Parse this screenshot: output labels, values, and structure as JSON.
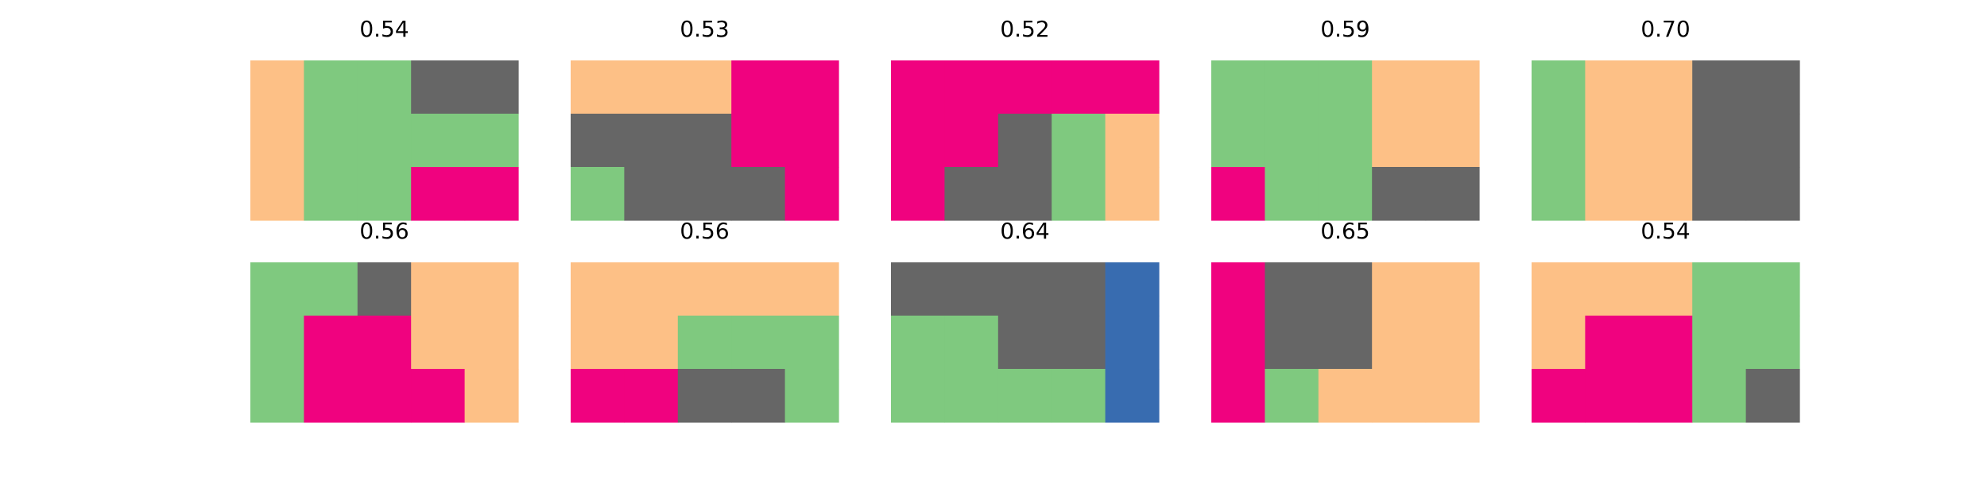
{
  "chart_data": {
    "type": "heatmap",
    "grid_rows": 3,
    "grid_cols": 5,
    "colors": {
      "O": "#fdc086",
      "G": "#7fc97f",
      "K": "#666666",
      "M": "#f0027f",
      "B": "#386cb0"
    },
    "panels": [
      {
        "title": "0.54",
        "cells": [
          [
            "O",
            "G",
            "G",
            "K",
            "K"
          ],
          [
            "O",
            "G",
            "G",
            "G",
            "G"
          ],
          [
            "O",
            "G",
            "G",
            "M",
            "M"
          ]
        ]
      },
      {
        "title": "0.53",
        "cells": [
          [
            "O",
            "O",
            "O",
            "M",
            "M"
          ],
          [
            "K",
            "K",
            "K",
            "M",
            "M"
          ],
          [
            "G",
            "K",
            "K",
            "K",
            "M"
          ]
        ]
      },
      {
        "title": "0.52",
        "cells": [
          [
            "M",
            "M",
            "M",
            "M",
            "M"
          ],
          [
            "M",
            "M",
            "K",
            "G",
            "O"
          ],
          [
            "M",
            "K",
            "K",
            "G",
            "O"
          ]
        ]
      },
      {
        "title": "0.59",
        "cells": [
          [
            "G",
            "G",
            "G",
            "O",
            "O"
          ],
          [
            "G",
            "G",
            "G",
            "O",
            "O"
          ],
          [
            "M",
            "G",
            "G",
            "K",
            "K"
          ]
        ]
      },
      {
        "title": "0.70",
        "cells": [
          [
            "G",
            "O",
            "O",
            "K",
            "K"
          ],
          [
            "G",
            "O",
            "O",
            "K",
            "K"
          ],
          [
            "G",
            "O",
            "O",
            "K",
            "K"
          ]
        ]
      },
      {
        "title": "0.56",
        "cells": [
          [
            "G",
            "G",
            "K",
            "O",
            "O"
          ],
          [
            "G",
            "M",
            "M",
            "O",
            "O"
          ],
          [
            "G",
            "M",
            "M",
            "M",
            "O"
          ]
        ]
      },
      {
        "title": "0.56",
        "cells": [
          [
            "O",
            "O",
            "O",
            "O",
            "O"
          ],
          [
            "O",
            "O",
            "G",
            "G",
            "G"
          ],
          [
            "M",
            "M",
            "K",
            "K",
            "G"
          ]
        ]
      },
      {
        "title": "0.64",
        "cells": [
          [
            "K",
            "K",
            "K",
            "K",
            "B"
          ],
          [
            "G",
            "G",
            "K",
            "K",
            "B"
          ],
          [
            "G",
            "G",
            "G",
            "G",
            "B"
          ]
        ]
      },
      {
        "title": "0.65",
        "cells": [
          [
            "M",
            "K",
            "K",
            "O",
            "O"
          ],
          [
            "M",
            "K",
            "K",
            "O",
            "O"
          ],
          [
            "M",
            "G",
            "O",
            "O",
            "O"
          ]
        ]
      },
      {
        "title": "0.54",
        "cells": [
          [
            "O",
            "O",
            "O",
            "G",
            "G"
          ],
          [
            "O",
            "M",
            "M",
            "G",
            "G"
          ],
          [
            "M",
            "M",
            "M",
            "G",
            "K"
          ]
        ]
      }
    ]
  }
}
